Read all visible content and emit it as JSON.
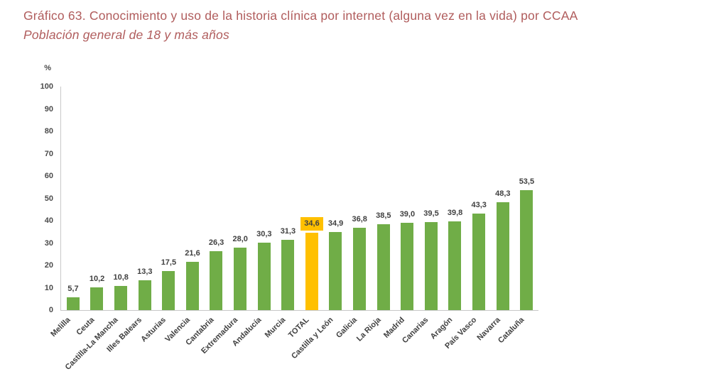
{
  "header": {
    "title": "Gráfico 63. Conocimiento y uso de la historia clínica por internet (alguna vez en la vida) por CCAA",
    "subtitle": "Población general de 18 y más años"
  },
  "colors": {
    "title_text": "#B05C5C",
    "bar": "#70AD47",
    "highlight": "#FFC000",
    "value_label_text": "#404040",
    "axis_tick_text": "#4A4A4A",
    "axis_line": "#C8C8C8",
    "background": "#FFFFFF"
  },
  "chart_data": {
    "type": "bar",
    "title": "Gráfico 63. Conocimiento y uso de la historia clínica por internet (alguna vez en la vida) por CCAA",
    "subtitle": "Población general de 18 y más años",
    "ylabel": "%",
    "xlabel": "",
    "ylim": [
      0,
      100
    ],
    "yticks": [
      0,
      10,
      20,
      30,
      40,
      50,
      60,
      70,
      80,
      90,
      100
    ],
    "grid": false,
    "legend": false,
    "categories": [
      "Melilla",
      "Ceuta",
      "Castilla-La Mancha",
      "Illes Balears",
      "Asturias",
      "Valencia",
      "Cantabria",
      "Extremadura",
      "Andalucía",
      "Murcia",
      "TOTAL",
      "Castilla y León",
      "Galicia",
      "La Rioja",
      "Madrid",
      "Canarias",
      "Aragón",
      "País Vasco",
      "Navarra",
      "Cataluña"
    ],
    "values": [
      5.7,
      10.2,
      10.8,
      13.3,
      17.5,
      21.6,
      26.3,
      28.0,
      30.3,
      31.3,
      34.6,
      34.9,
      36.8,
      38.5,
      39.0,
      39.5,
      39.8,
      43.3,
      48.3,
      53.5
    ],
    "value_labels": [
      "5,7",
      "10,2",
      "10,8",
      "13,3",
      "17,5",
      "21,6",
      "26,3",
      "28,0",
      "30,3",
      "31,3",
      "34,6",
      "34,9",
      "36,8",
      "38,5",
      "39,0",
      "39,5",
      "39,8",
      "43,3",
      "48,3",
      "53,5"
    ],
    "highlight_index": 10,
    "highlight_category": "TOTAL"
  }
}
